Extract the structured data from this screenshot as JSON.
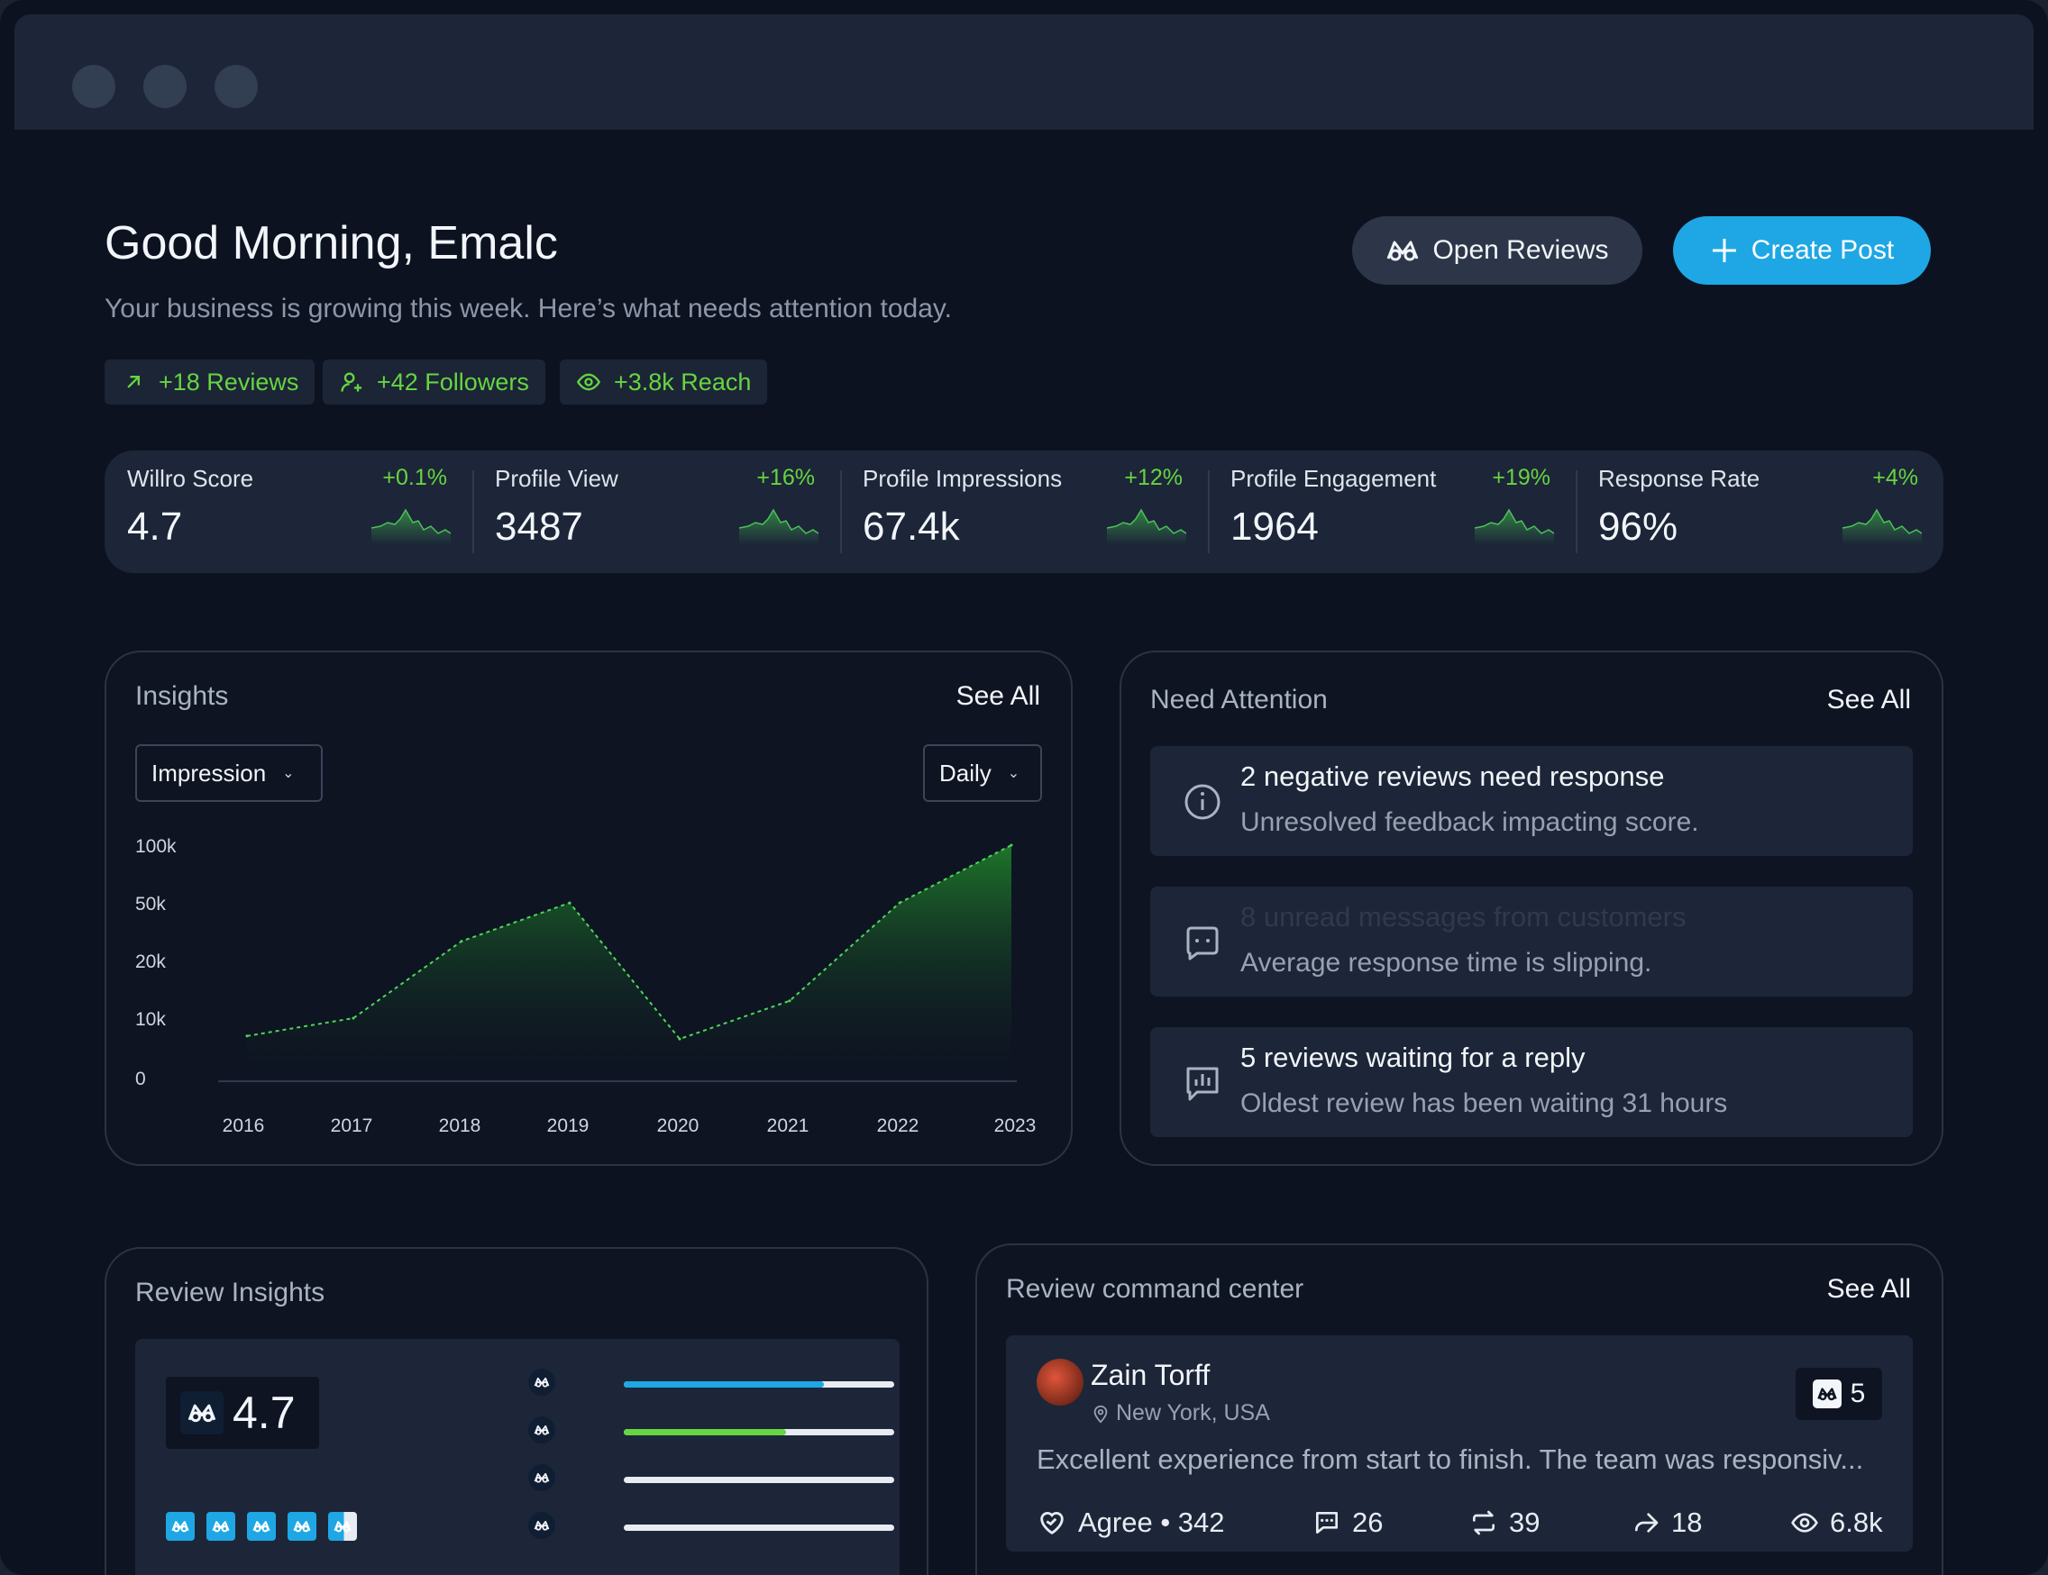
{
  "header": {
    "greeting": "Good Morning, Emalc",
    "subtitle": "Your business is growing this week. Here’s what needs attention today.",
    "chips": [
      {
        "label": "+18 Reviews",
        "icon": "arrow-up-right-icon"
      },
      {
        "label": "+42 Followers",
        "icon": "user-plus-icon"
      },
      {
        "label": "+3.8k Reach",
        "icon": "eye-icon"
      }
    ],
    "open_reviews_label": "Open Reviews",
    "create_post_label": "Create Post",
    "accent_color": "#1ea7e4",
    "positive_color": "#67d441"
  },
  "stats": [
    {
      "label": "Willro Score",
      "delta": "+0.1%",
      "value": "4.7"
    },
    {
      "label": "Profile View",
      "delta": "+16%",
      "value": "3487"
    },
    {
      "label": "Profile Impressions",
      "delta": "+12%",
      "value": "67.4k"
    },
    {
      "label": "Profile Engagement",
      "delta": "+19%",
      "value": "1964"
    },
    {
      "label": "Response Rate",
      "delta": "+4%",
      "value": "96%"
    }
  ],
  "insights": {
    "title": "Insights",
    "see_all": "See All",
    "metric_select": "Impression",
    "period_select": "Daily"
  },
  "chart_data": {
    "type": "area",
    "x": [
      "2016",
      "2017",
      "2018",
      "2019",
      "2020",
      "2021",
      "2022",
      "2023"
    ],
    "y_ticks": [
      "100k",
      "50k",
      "20k",
      "10k",
      "0"
    ],
    "series": [
      {
        "values": [
          7000,
          10000,
          30000,
          50000,
          6500,
          13000,
          50000,
          100000
        ]
      }
    ]
  },
  "attention": {
    "title": "Need Attention",
    "see_all": "See All",
    "items": [
      {
        "title": "2 negative reviews need response",
        "sub": "Unresolved feedback impacting score.",
        "icon": "info-icon"
      },
      {
        "title": "8 unread messages from customers",
        "sub": "Average response time is slipping.",
        "icon": "message-icon"
      },
      {
        "title": "5 reviews waiting for a reply",
        "sub": "Oldest review has been waiting 31 hours",
        "icon": "chart-message-icon"
      }
    ]
  },
  "review_insights": {
    "title": "Review Insights",
    "score": "4.7",
    "bars": [
      {
        "fill": 0.74,
        "color": "#1ea7e4"
      },
      {
        "fill": 0.6,
        "color": "#67d441"
      },
      {
        "fill": 0.0,
        "color": "#e8ecf2"
      },
      {
        "fill": 0.0,
        "color": "#e8ecf2"
      }
    ],
    "rating_fraction": 0.94
  },
  "command_center": {
    "title": "Review command center",
    "see_all": "See All",
    "review": {
      "name": "Zain Torff",
      "location": "New York, USA",
      "badge": "5",
      "text": "Excellent experience from start to finish. The team was responsiv...",
      "agree": "Agree • 342",
      "comments": "26",
      "reposts": "39",
      "shares": "18",
      "views": "6.8k"
    }
  }
}
